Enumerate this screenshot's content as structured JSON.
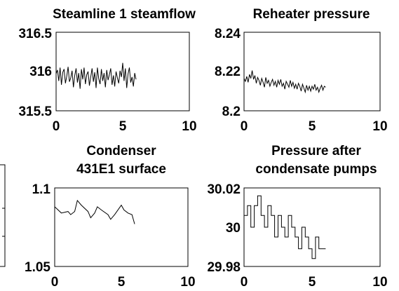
{
  "chart_data": [
    {
      "type": "line",
      "title": [
        "Steamline 1 steamflow"
      ],
      "xlim": [
        0,
        10
      ],
      "ylim": [
        315.5,
        316.5
      ],
      "xticks": [
        0,
        5,
        10
      ],
      "yticks": [
        315.5,
        316,
        316.5
      ],
      "xtick_labels": [
        "0",
        "5",
        "10"
      ],
      "ytick_labels": [
        "315.5",
        "316",
        "316.5"
      ],
      "series": [
        {
          "x": [
            0,
            0.1,
            0.2,
            0.3,
            0.4,
            0.5,
            0.6,
            0.7,
            0.8,
            0.9,
            1.0,
            1.1,
            1.2,
            1.3,
            1.4,
            1.5,
            1.6,
            1.7,
            1.8,
            1.9,
            2.0,
            2.1,
            2.2,
            2.3,
            2.4,
            2.5,
            2.6,
            2.7,
            2.8,
            2.9,
            3.0,
            3.1,
            3.2,
            3.3,
            3.4,
            3.5,
            3.6,
            3.7,
            3.8,
            3.9,
            4.0,
            4.1,
            4.2,
            4.3,
            4.4,
            4.5,
            4.6,
            4.7,
            4.8,
            4.9,
            5.0,
            5.1,
            5.2,
            5.3,
            5.4,
            5.5,
            5.6,
            5.7,
            5.8,
            5.9,
            6.0
          ],
          "y": [
            315.97,
            316.02,
            315.88,
            316.05,
            315.83,
            315.99,
            316.03,
            315.85,
            315.94,
            316.06,
            315.87,
            315.92,
            316.01,
            315.8,
            315.95,
            316.04,
            315.86,
            315.98,
            315.78,
            316.03,
            315.9,
            316.05,
            315.84,
            315.96,
            316.0,
            315.82,
            315.93,
            316.04,
            315.87,
            315.99,
            315.79,
            316.05,
            315.91,
            315.84,
            316.03,
            315.88,
            315.98,
            315.8,
            316.02,
            315.89,
            315.96,
            316.04,
            315.83,
            315.95,
            315.81,
            316.0,
            315.92,
            315.85,
            316.01,
            315.93,
            316.11,
            315.88,
            316.04,
            315.79,
            315.97,
            316.05,
            315.86,
            315.93,
            315.81,
            315.98,
            315.9
          ]
        }
      ]
    },
    {
      "type": "line",
      "title": [
        "Reheater pressure"
      ],
      "xlim": [
        0,
        10
      ],
      "ylim": [
        8.2,
        8.24
      ],
      "xticks": [
        0,
        5,
        10
      ],
      "yticks": [
        8.2,
        8.22,
        8.24
      ],
      "xtick_labels": [
        "0",
        "5",
        "10"
      ],
      "ytick_labels": [
        "8.2",
        "8.22",
        "8.24"
      ],
      "series": [
        {
          "x": [
            0,
            0.1,
            0.2,
            0.3,
            0.4,
            0.5,
            0.6,
            0.7,
            0.8,
            0.9,
            1.0,
            1.1,
            1.2,
            1.3,
            1.4,
            1.5,
            1.6,
            1.7,
            1.8,
            1.9,
            2.0,
            2.1,
            2.2,
            2.3,
            2.4,
            2.5,
            2.6,
            2.7,
            2.8,
            2.9,
            3.0,
            3.1,
            3.2,
            3.3,
            3.4,
            3.5,
            3.6,
            3.7,
            3.8,
            3.9,
            4.0,
            4.1,
            4.2,
            4.3,
            4.4,
            4.5,
            4.6,
            4.7,
            4.8,
            4.9,
            5.0,
            5.1,
            5.2,
            5.3,
            5.4,
            5.5,
            5.6,
            5.7,
            5.8,
            5.9,
            6.0
          ],
          "y": [
            8.2165,
            8.215,
            8.2175,
            8.2145,
            8.2185,
            8.2165,
            8.2205,
            8.216,
            8.218,
            8.214,
            8.217,
            8.2155,
            8.213,
            8.2165,
            8.2145,
            8.212,
            8.217,
            8.214,
            8.2155,
            8.2125,
            8.2145,
            8.216,
            8.213,
            8.215,
            8.212,
            8.2155,
            8.2135,
            8.216,
            8.2125,
            8.214,
            8.211,
            8.215,
            8.2135,
            8.212,
            8.2155,
            8.2125,
            8.2145,
            8.2115,
            8.2135,
            8.211,
            8.214,
            8.2125,
            8.21,
            8.2135,
            8.2115,
            8.2095,
            8.213,
            8.2105,
            8.2125,
            8.21,
            8.2125,
            8.211,
            8.2135,
            8.2105,
            8.212,
            8.2095,
            8.2115,
            8.213,
            8.2105,
            8.2125,
            8.212
          ]
        }
      ]
    },
    {
      "type": "line",
      "title": [
        "Condenser",
        "431E1 surface"
      ],
      "xlim": [
        0,
        10
      ],
      "ylim": [
        1.05,
        1.1
      ],
      "xticks": [
        0,
        5,
        10
      ],
      "yticks": [
        1.05,
        1.1
      ],
      "xtick_labels": [
        "0",
        "5",
        "10"
      ],
      "ytick_labels": [
        "1.05",
        "1.1"
      ],
      "series": [
        {
          "x": [
            0,
            0.5,
            1.0,
            1.2,
            1.5,
            1.7,
            2.0,
            2.5,
            2.7,
            3.0,
            3.2,
            3.5,
            4.0,
            4.2,
            4.5,
            5.0,
            5.2,
            5.5,
            5.8,
            6.0
          ],
          "y": [
            1.088,
            1.084,
            1.085,
            1.083,
            1.085,
            1.092,
            1.089,
            1.085,
            1.081,
            1.084,
            1.088,
            1.086,
            1.083,
            1.08,
            1.083,
            1.089,
            1.086,
            1.084,
            1.083,
            1.077
          ]
        }
      ]
    },
    {
      "type": "line",
      "title": [
        "Pressure after",
        "condensate pumps"
      ],
      "xlim": [
        0,
        10
      ],
      "ylim": [
        29.98,
        30.02
      ],
      "xticks": [
        0,
        5,
        10
      ],
      "yticks": [
        29.98,
        30,
        30.02
      ],
      "xtick_labels": [
        "0",
        "5",
        "10"
      ],
      "ytick_labels": [
        "29.98",
        "30",
        "30.02"
      ],
      "series": [
        {
          "step": true,
          "x": [
            0,
            0.25,
            0.5,
            0.75,
            1.0,
            1.25,
            1.5,
            1.75,
            2.0,
            2.25,
            2.5,
            2.75,
            3.0,
            3.25,
            3.5,
            3.75,
            4.0,
            4.25,
            4.5,
            4.75,
            5.0,
            5.25,
            5.5,
            5.75,
            6.0
          ],
          "y": [
            30.006,
            30.011,
            30.0,
            30.011,
            30.016,
            30.006,
            30.0,
            30.011,
            30.006,
            29.995,
            30.006,
            30.0,
            29.995,
            30.006,
            30.0,
            29.995,
            29.989,
            30.0,
            29.995,
            29.989,
            29.984,
            29.995,
            29.989,
            29.989,
            29.989
          ]
        }
      ]
    }
  ]
}
